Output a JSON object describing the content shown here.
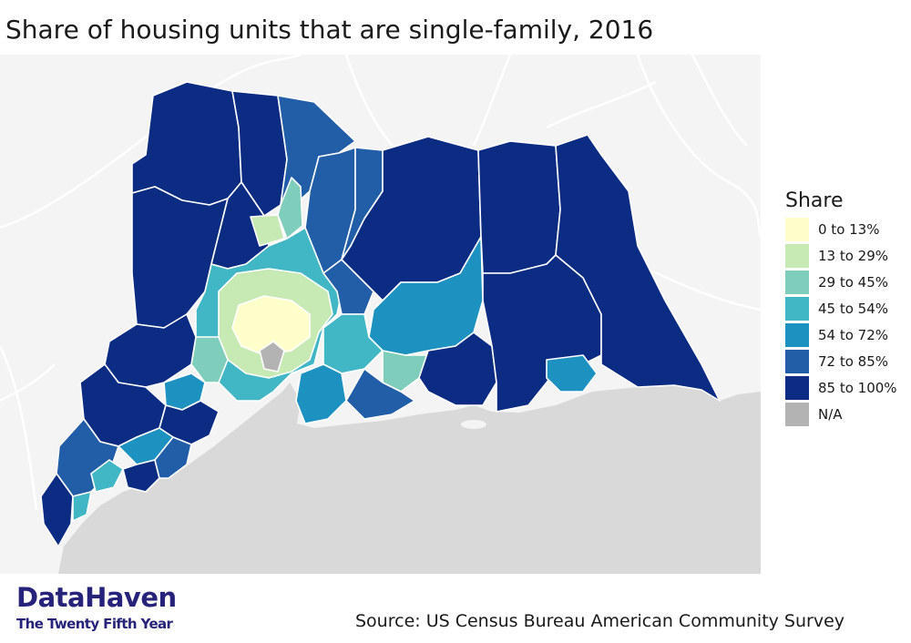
{
  "title": "Share of housing units that are single-family, 2016",
  "legend": {
    "title": "Share",
    "items": [
      {
        "label": "0 to 13%",
        "color": "#ffffcc"
      },
      {
        "label": "13 to 29%",
        "color": "#c7e9b4"
      },
      {
        "label": "29 to 45%",
        "color": "#7fcdbb"
      },
      {
        "label": "45 to 54%",
        "color": "#41b6c4"
      },
      {
        "label": "54 to 72%",
        "color": "#1d91c0"
      },
      {
        "label": "72 to 85%",
        "color": "#225ea8"
      },
      {
        "label": "85 to 100%",
        "color": "#0c2c84"
      },
      {
        "label": "N/A",
        "color": "#b3b3b3"
      }
    ]
  },
  "logo": {
    "name": "DataHaven",
    "tagline": "The Twenty Fifth Year"
  },
  "source": "Source: US Census Bureau American Community Survey",
  "colors": {
    "water": "#d9d9d9",
    "basemap_land": "#f4f4f4",
    "basemap_roads": "#ffffff",
    "boundary": "#ffffff"
  }
}
